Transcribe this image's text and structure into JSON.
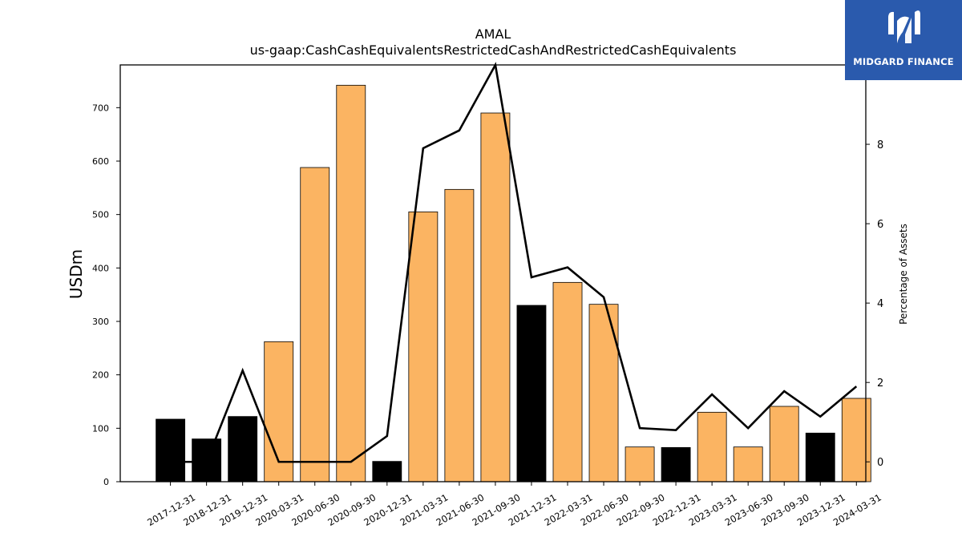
{
  "chart_data": {
    "type": "bar",
    "title": "AMAL",
    "subtitle": "us-gaap:CashCashEquivalentsRestrictedCashAndRestrictedCashEquivalents",
    "ylabel": "USDm",
    "y2label": "Percentage of Assets",
    "ylim": [
      0,
      780
    ],
    "y2lim": [
      -0.5,
      10
    ],
    "yticks": [
      0,
      100,
      200,
      300,
      400,
      500,
      600,
      700
    ],
    "y2ticks": [
      0,
      2,
      4,
      6,
      8
    ],
    "categories": [
      "2017-12-31",
      "2018-12-31",
      "2019-12-31",
      "2020-03-31",
      "2020-06-30",
      "2020-09-30",
      "2020-12-31",
      "2021-03-31",
      "2021-06-30",
      "2021-09-30",
      "2021-12-31",
      "2022-03-31",
      "2022-06-30",
      "2022-09-30",
      "2022-12-31",
      "2023-03-31",
      "2023-06-30",
      "2023-09-30",
      "2023-12-31",
      "2024-03-31"
    ],
    "series": [
      {
        "type": "bar",
        "axis": "left",
        "values": [
          117,
          80,
          122,
          262,
          588,
          742,
          38,
          505,
          547,
          690,
          330,
          373,
          332,
          65,
          64,
          130,
          65,
          141,
          91,
          156
        ],
        "bar_colors": [
          "#000000",
          "#000000",
          "#000000",
          "#fbb462",
          "#fbb462",
          "#fbb462",
          "#000000",
          "#fbb462",
          "#fbb462",
          "#fbb462",
          "#000000",
          "#fbb462",
          "#fbb462",
          "#fbb462",
          "#000000",
          "#fbb462",
          "#fbb462",
          "#fbb462",
          "#000000",
          "#fbb462"
        ]
      },
      {
        "type": "line",
        "axis": "right",
        "color": "#000000",
        "values": [
          0,
          0,
          2.3,
          0,
          0,
          0,
          0.65,
          7.9,
          8.35,
          10.0,
          4.65,
          4.9,
          4.15,
          0.85,
          0.8,
          1.7,
          0.85,
          1.78,
          1.14,
          1.9
        ]
      }
    ],
    "grid": false,
    "legend": "none"
  },
  "logo": {
    "text": "MIDGARD FINANCE",
    "color": "#2a5aad"
  }
}
